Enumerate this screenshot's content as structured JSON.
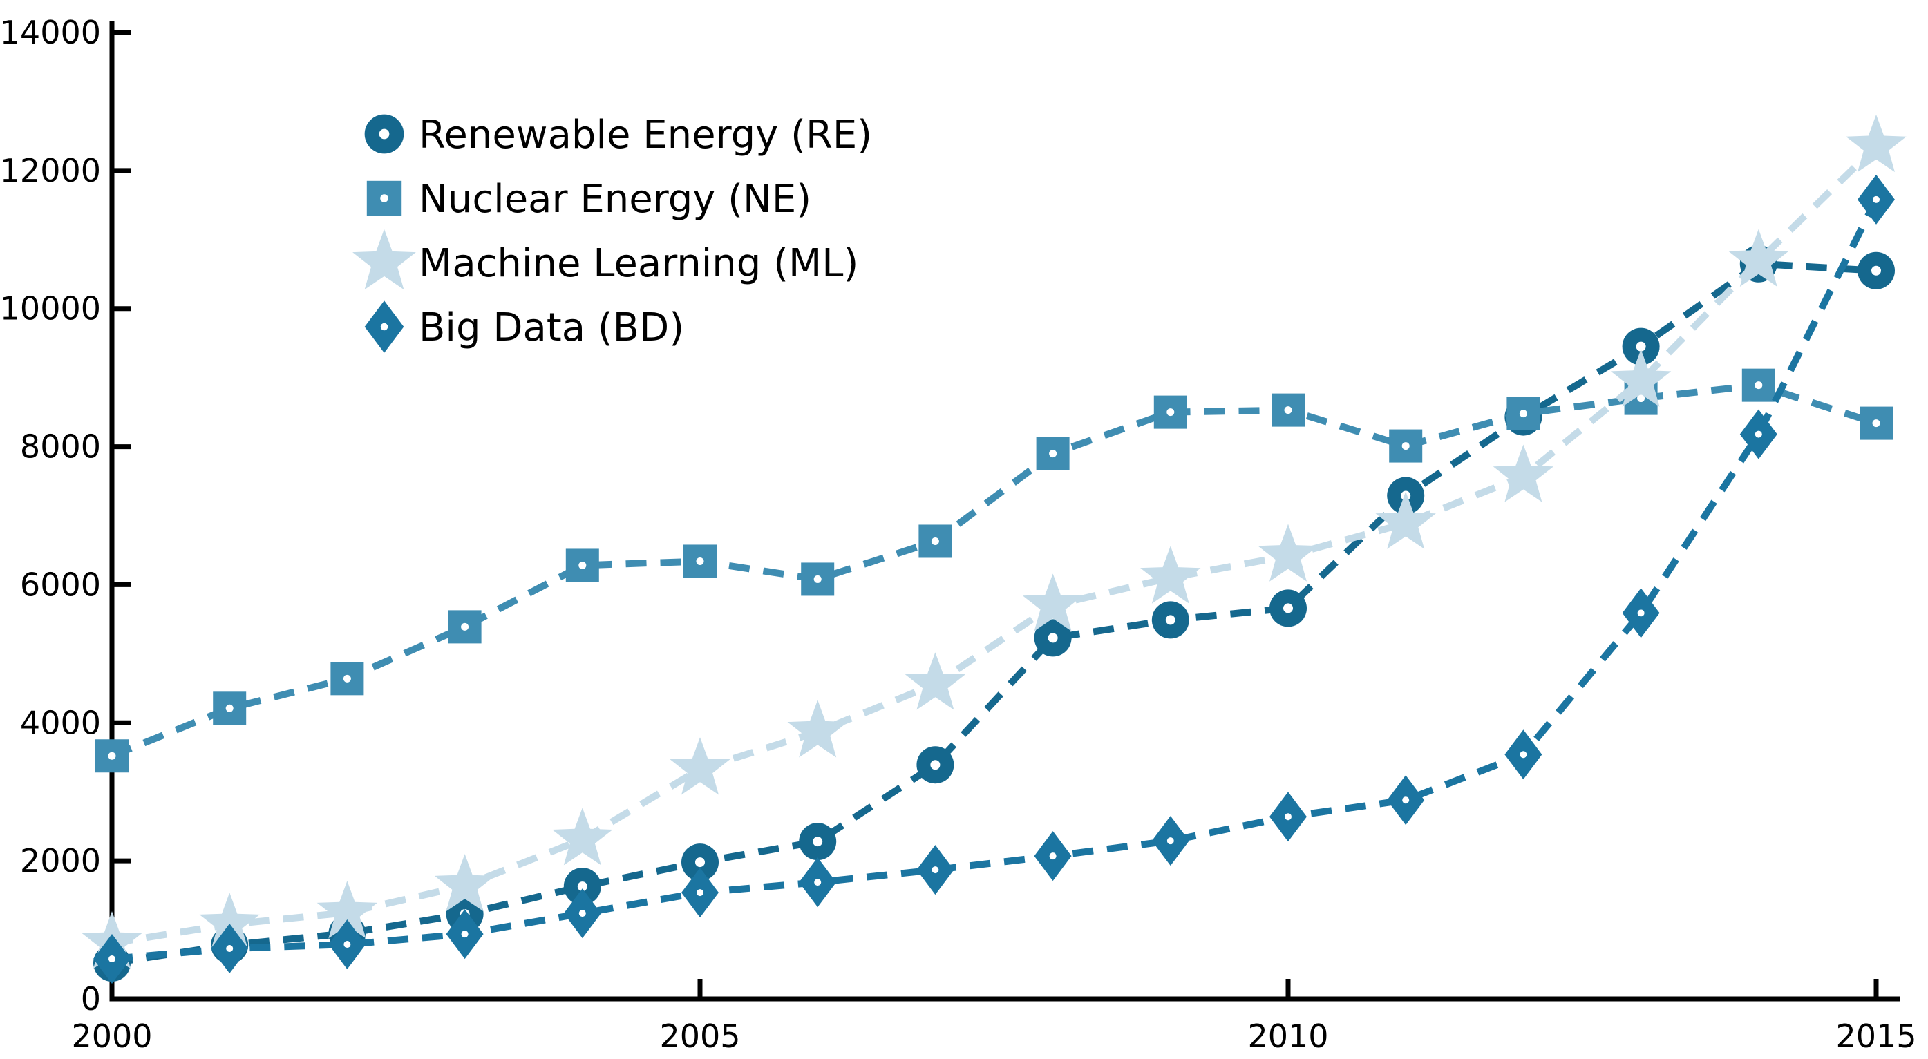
{
  "chart_data": {
    "type": "line",
    "title": "",
    "xlabel": "",
    "ylabel": "",
    "line_style": "dashed",
    "grid": false,
    "legend_position": "upper-left",
    "xlim": [
      2000,
      2015
    ],
    "ylim": [
      0,
      14000
    ],
    "xticks": [
      2000,
      2005,
      2010,
      2015
    ],
    "yticks": [
      0,
      2000,
      4000,
      6000,
      8000,
      10000,
      12000,
      14000
    ],
    "x": [
      2000,
      2001,
      2002,
      2003,
      2004,
      2005,
      2006,
      2007,
      2008,
      2009,
      2010,
      2011,
      2012,
      2013,
      2014,
      2015
    ],
    "series": [
      {
        "name": "Renewable Energy (RE)",
        "short": "RE",
        "marker": "circle",
        "color": "#15688E",
        "values": [
          520,
          780,
          950,
          1230,
          1630,
          1980,
          2280,
          3390,
          5230,
          5490,
          5660,
          7290,
          8430,
          9450,
          10650,
          10550
        ]
      },
      {
        "name": "Nuclear Energy (NE)",
        "short": "NE",
        "marker": "square",
        "color": "#3F8DB2",
        "values": [
          3520,
          4210,
          4640,
          5390,
          6280,
          6340,
          6080,
          6630,
          7900,
          8500,
          8530,
          8010,
          8480,
          8700,
          8890,
          8340
        ]
      },
      {
        "name": "Machine Learning (ML)",
        "short": "ML",
        "marker": "star",
        "color": "#C4DBE8",
        "values": [
          810,
          1080,
          1250,
          1640,
          2310,
          3330,
          3870,
          4560,
          5700,
          6100,
          6420,
          6890,
          7570,
          8950,
          10690,
          12350
        ]
      },
      {
        "name": "Big Data (BD)",
        "short": "BD",
        "marker": "diamond",
        "color": "#1B75A1",
        "values": [
          580,
          730,
          790,
          940,
          1240,
          1540,
          1690,
          1870,
          2070,
          2290,
          2640,
          2880,
          3540,
          5590,
          8180,
          11580
        ]
      }
    ],
    "axis_color": "#000000"
  }
}
